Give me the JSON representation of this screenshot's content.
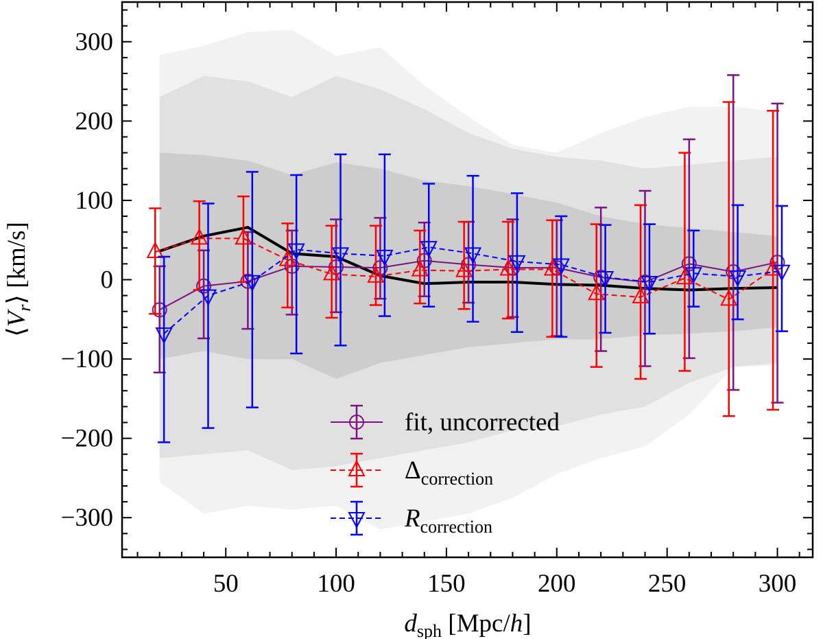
{
  "chart_data": {
    "type": "line",
    "xlabel": {
      "main": "d",
      "sub": "sph",
      "rest": " [Mpc/",
      "unit_italic": "h",
      "close": "]"
    },
    "ylabel": {
      "open": "⟨",
      "main": "V",
      "sub": "r",
      "close": "⟩ [km/s]"
    },
    "xlim": [
      3,
      316
    ],
    "ylim": [
      -350,
      350
    ],
    "xticks": [
      50,
      100,
      150,
      200,
      250,
      300
    ],
    "yticks": [
      -300,
      -200,
      -100,
      0,
      100,
      200,
      300
    ],
    "ytick_labels": [
      "−300",
      "−200",
      "−100",
      "0",
      "100",
      "200",
      "300"
    ],
    "grid": false,
    "legend_placement": "bottom-center",
    "bands": [
      {
        "color": "#f2f2f2",
        "x": [
          20,
          40,
          60,
          80,
          100,
          120,
          140,
          160,
          180,
          200,
          220,
          240,
          260,
          280,
          300
        ],
        "upper": [
          283,
          295,
          312,
          315,
          282,
          293,
          245,
          205,
          170,
          160,
          185,
          205,
          218,
          218,
          212
        ],
        "lower": [
          -255,
          -295,
          -285,
          -290,
          -285,
          -315,
          -305,
          -295,
          -275,
          -245,
          -225,
          -210,
          -170,
          -110,
          -108
        ]
      },
      {
        "color": "#e1e1e1",
        "x": [
          20,
          40,
          60,
          80,
          100,
          120,
          140,
          160,
          180,
          200,
          220,
          240,
          260,
          280,
          300
        ],
        "upper": [
          230,
          257,
          250,
          230,
          257,
          240,
          215,
          185,
          165,
          155,
          150,
          140,
          145,
          150,
          155
        ],
        "lower": [
          -225,
          -220,
          -215,
          -240,
          -235,
          -225,
          -215,
          -205,
          -190,
          -185,
          -170,
          -160,
          -130,
          -110,
          -105
        ]
      },
      {
        "color": "#cdcdcd",
        "x": [
          20,
          40,
          60,
          80,
          100,
          120,
          140,
          160,
          180,
          200,
          220,
          240,
          260,
          280,
          300
        ],
        "upper": [
          160,
          157,
          150,
          132,
          148,
          140,
          125,
          118,
          108,
          97,
          80,
          70,
          65,
          60,
          55
        ],
        "lower": [
          -100,
          -90,
          -100,
          -100,
          -125,
          -105,
          -95,
          -85,
          -80,
          -75,
          -75,
          -70,
          -68,
          -65,
          -60
        ]
      }
    ],
    "reference_line": {
      "color": "#000000",
      "x": [
        20,
        40,
        60,
        80,
        100,
        120,
        140,
        160,
        180,
        200,
        220,
        240,
        260,
        280,
        300
      ],
      "y": [
        36,
        55,
        66,
        33,
        29,
        5,
        -5,
        -3,
        -3,
        -6,
        -7,
        -11,
        -13,
        -11,
        -10
      ]
    },
    "series": [
      {
        "name": "fit, uncorrected",
        "label_main": "fit, uncorrected",
        "label_sub": "",
        "color": "#7b1182",
        "marker": "circle",
        "dash": "solid",
        "x": [
          20,
          40,
          60,
          80,
          100,
          120,
          140,
          160,
          180,
          200,
          220,
          240,
          260,
          280,
          300
        ],
        "y": [
          -38,
          -8,
          -2,
          17,
          16,
          15,
          24,
          19,
          15,
          15,
          3,
          -3,
          20,
          10,
          22
        ],
        "err_low": [
          -117,
          -74,
          -62,
          -44,
          -41,
          -24,
          -21,
          -29,
          -47,
          -71,
          -90,
          -109,
          -99,
          -139,
          -155
        ],
        "err_high": [
          17,
          37,
          60,
          62,
          76,
          78,
          72,
          73,
          76,
          75,
          91,
          112,
          177,
          258,
          222
        ]
      },
      {
        "name": "Δcorrection",
        "label_main": "Δ",
        "label_sub": "correction",
        "color": "#ff0000",
        "marker": "triangle-up",
        "dash": "dashed",
        "x": [
          18,
          38,
          58,
          78,
          98,
          118,
          138,
          158,
          178,
          198,
          218,
          238,
          258,
          278,
          298
        ],
        "y": [
          35,
          52,
          52,
          25,
          7,
          4,
          12,
          11,
          13,
          13,
          -18,
          -22,
          2,
          -25,
          13
        ],
        "err_low": [
          -43,
          -13,
          -3,
          -35,
          -48,
          -32,
          -30,
          -37,
          -49,
          -72,
          -110,
          -125,
          -115,
          -172,
          -164
        ],
        "err_high": [
          90,
          99,
          105,
          71,
          68,
          68,
          62,
          73,
          73,
          75,
          70,
          94,
          160,
          224,
          213
        ]
      },
      {
        "name": "Rcorrection",
        "label_main": "R",
        "label_sub": "correction",
        "color": "#0000ff",
        "marker": "triangle-down",
        "dash": "dashed",
        "x": [
          22,
          42,
          62,
          82,
          102,
          122,
          142,
          162,
          182,
          202,
          222,
          242,
          262,
          282,
          302
        ],
        "y": [
          -68,
          -20,
          -2,
          38,
          33,
          30,
          41,
          33,
          23,
          19,
          3,
          -3,
          8,
          4,
          11
        ],
        "err_low": [
          -205,
          -187,
          -161,
          -93,
          -83,
          -46,
          -34,
          -53,
          -66,
          -72,
          -67,
          -68,
          -34,
          -50,
          -65
        ],
        "err_high": [
          29,
          96,
          136,
          132,
          158,
          158,
          121,
          131,
          109,
          80,
          69,
          70,
          62,
          94,
          93
        ]
      }
    ]
  }
}
